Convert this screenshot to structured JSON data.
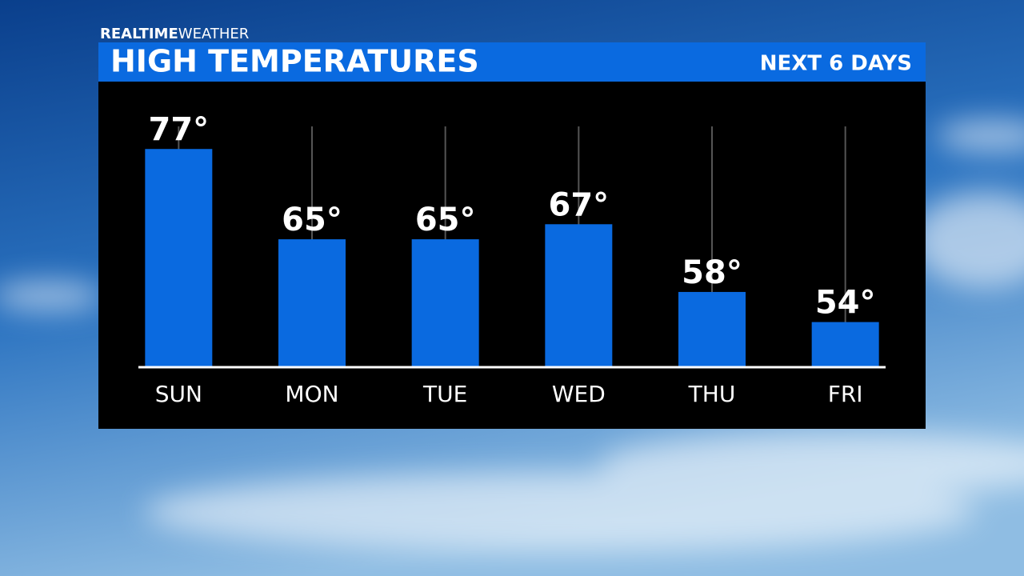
{
  "brand": {
    "bold": "REALTIME",
    "light": "WEATHER"
  },
  "chart_data": {
    "type": "bar",
    "title": "HIGH TEMPERATURES",
    "subtitle": "NEXT 6 DAYS",
    "categories": [
      "SUN",
      "MON",
      "TUE",
      "WED",
      "THU",
      "FRI"
    ],
    "values": [
      77,
      65,
      65,
      67,
      58,
      54
    ],
    "value_labels": [
      "77°",
      "65°",
      "65°",
      "67°",
      "58°",
      "54°"
    ],
    "color": "#0a6ae0",
    "ylim": [
      48,
      80
    ]
  }
}
